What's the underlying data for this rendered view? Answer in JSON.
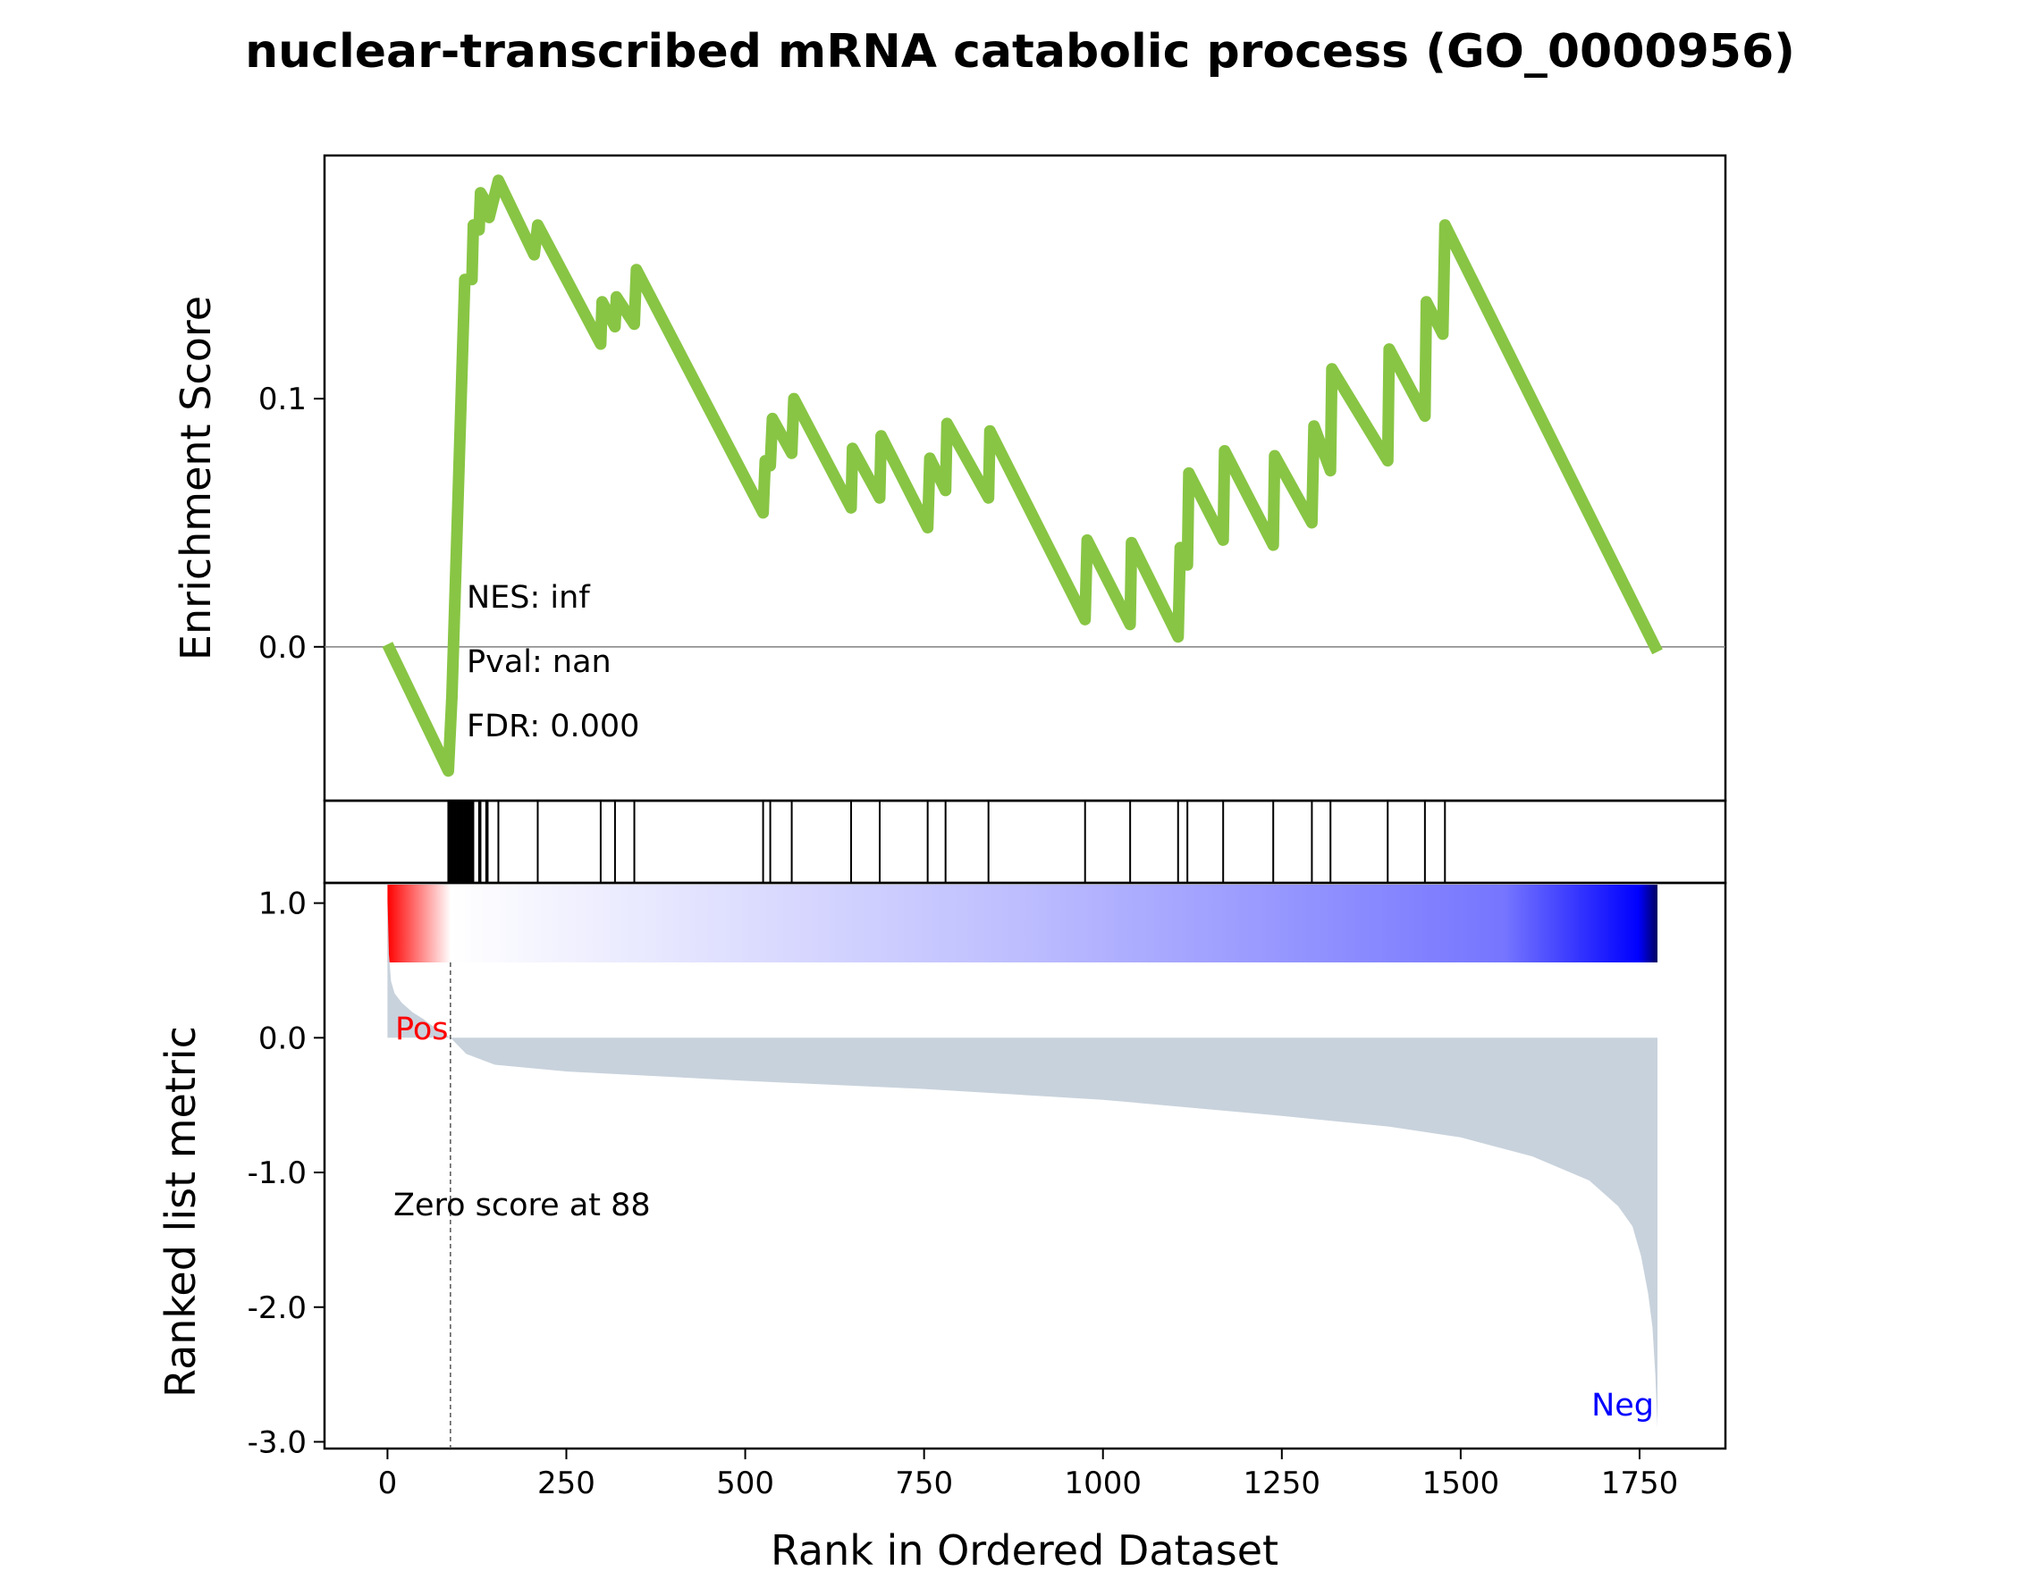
{
  "chart_data": {
    "type": "line",
    "title": "nuclear-transcribed mRNA catabolic process (GO_0000956)",
    "xlabel": "Rank in Ordered Dataset",
    "es_panel": {
      "ylabel": "Enrichment Score",
      "yticks": [
        0.0,
        0.1
      ],
      "ylim": [
        -0.062,
        0.198
      ],
      "series_color": "#88c544",
      "zero_line": true,
      "stats": [
        "NES: inf",
        "Pval: nan",
        "FDR: 0.000"
      ],
      "points": [
        [
          0,
          0.001
        ],
        [
          85,
          -0.05
        ],
        [
          90,
          -0.02
        ],
        [
          105,
          0.12
        ],
        [
          108,
          0.148
        ],
        [
          118,
          0.148
        ],
        [
          120,
          0.17
        ],
        [
          128,
          0.168
        ],
        [
          130,
          0.183
        ],
        [
          140,
          0.178
        ],
        [
          142,
          0.173
        ],
        [
          155,
          0.188
        ],
        [
          205,
          0.158
        ],
        [
          210,
          0.17
        ],
        [
          298,
          0.122
        ],
        [
          300,
          0.139
        ],
        [
          318,
          0.129
        ],
        [
          320,
          0.141
        ],
        [
          345,
          0.13
        ],
        [
          348,
          0.152
        ],
        [
          525,
          0.054
        ],
        [
          528,
          0.075
        ],
        [
          535,
          0.073
        ],
        [
          538,
          0.092
        ],
        [
          565,
          0.078
        ],
        [
          568,
          0.1
        ],
        [
          648,
          0.056
        ],
        [
          650,
          0.08
        ],
        [
          688,
          0.06
        ],
        [
          690,
          0.085
        ],
        [
          755,
          0.048
        ],
        [
          758,
          0.076
        ],
        [
          780,
          0.063
        ],
        [
          782,
          0.09
        ],
        [
          840,
          0.06
        ],
        [
          842,
          0.087
        ],
        [
          975,
          0.011
        ],
        [
          978,
          0.043
        ],
        [
          1038,
          0.009
        ],
        [
          1040,
          0.042
        ],
        [
          1105,
          0.004
        ],
        [
          1108,
          0.04
        ],
        [
          1118,
          0.033
        ],
        [
          1120,
          0.07
        ],
        [
          1168,
          0.043
        ],
        [
          1170,
          0.079
        ],
        [
          1238,
          0.041
        ],
        [
          1240,
          0.077
        ],
        [
          1292,
          0.05
        ],
        [
          1295,
          0.089
        ],
        [
          1318,
          0.071
        ],
        [
          1320,
          0.112
        ],
        [
          1398,
          0.075
        ],
        [
          1400,
          0.12
        ],
        [
          1450,
          0.093
        ],
        [
          1452,
          0.139
        ],
        [
          1475,
          0.126
        ],
        [
          1478,
          0.17
        ],
        [
          1775,
          -0.002
        ]
      ]
    },
    "hits_panel": {
      "hit_ranks": [
        85,
        87,
        89,
        91,
        93,
        95,
        97,
        99,
        101,
        103,
        105,
        107,
        109,
        111,
        113,
        115,
        117,
        119,
        120,
        128,
        130,
        138,
        140,
        155,
        210,
        298,
        318,
        345,
        525,
        535,
        565,
        648,
        688,
        755,
        780,
        840,
        975,
        1038,
        1105,
        1118,
        1168,
        1238,
        1292,
        1318,
        1398,
        1450,
        1478
      ]
    },
    "ranked_panel": {
      "ylabel": "Ranked list metric",
      "ytick_labels": [
        "1.0",
        "0.0",
        "-1.0",
        "-2.0",
        "-3.0"
      ],
      "ytick_values": [
        1.0,
        0.0,
        -1.0,
        -2.0,
        -3.0
      ],
      "ylim": [
        -3.05,
        1.15
      ],
      "fill_color": "#c8d2dc",
      "pos_label": "Pos",
      "neg_label": "Neg",
      "pos_color": "#ff0000",
      "neg_color": "#0000ff",
      "zero_cross_rank": 88,
      "zero_text": "Zero score at 88",
      "metric_points": [
        [
          0,
          1.05
        ],
        [
          2,
          0.62
        ],
        [
          5,
          0.42
        ],
        [
          10,
          0.33
        ],
        [
          20,
          0.26
        ],
        [
          35,
          0.19
        ],
        [
          50,
          0.14
        ],
        [
          70,
          0.06
        ],
        [
          88,
          0.0
        ],
        [
          110,
          -0.12
        ],
        [
          150,
          -0.2
        ],
        [
          250,
          -0.25
        ],
        [
          500,
          -0.32
        ],
        [
          750,
          -0.38
        ],
        [
          1000,
          -0.46
        ],
        [
          1250,
          -0.58
        ],
        [
          1400,
          -0.66
        ],
        [
          1500,
          -0.74
        ],
        [
          1600,
          -0.88
        ],
        [
          1680,
          -1.06
        ],
        [
          1720,
          -1.25
        ],
        [
          1740,
          -1.4
        ],
        [
          1752,
          -1.62
        ],
        [
          1762,
          -1.9
        ],
        [
          1768,
          -2.15
        ],
        [
          1772,
          -2.5
        ],
        [
          1775,
          -2.9
        ]
      ]
    },
    "x_axis": {
      "xlim": [
        -88,
        1870
      ],
      "ticks": [
        0,
        250,
        500,
        750,
        1000,
        1250,
        1500,
        1750
      ],
      "max_rank": 1775
    }
  }
}
